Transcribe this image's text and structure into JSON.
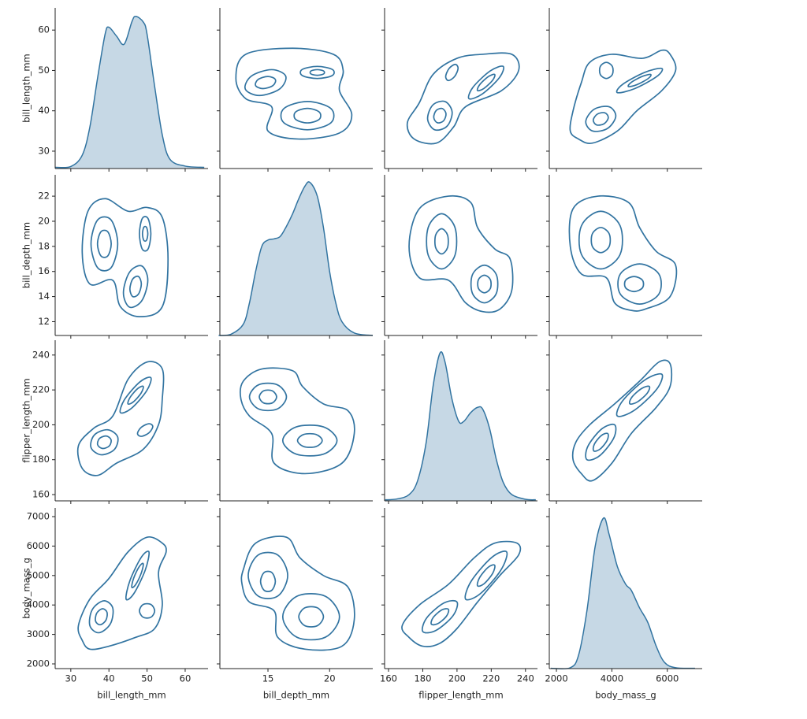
{
  "chart_data": {
    "type": "pairplot",
    "color": "#3274a1",
    "variables": [
      {
        "name": "bill_length_mm",
        "xlim": [
          25.9,
          66
        ],
        "ylim": [
          25.7,
          65.5
        ],
        "xticks": [
          30,
          40,
          50,
          60
        ],
        "yticks": [
          30,
          40,
          50,
          60
        ],
        "kde": {
          "x": [
            26,
            30,
            33,
            35,
            37,
            39,
            40,
            42,
            44,
            46,
            47,
            49,
            50,
            52,
            54,
            56,
            60,
            65
          ],
          "values": [
            26,
            26.2,
            29,
            36,
            48,
            59,
            60.7,
            58.5,
            56.5,
            62,
            63.4,
            62,
            59,
            46,
            34,
            28,
            26.3,
            26
          ]
        }
      },
      {
        "name": "bill_depth_mm",
        "xlim": [
          11.1,
          23.5
        ],
        "ylim": [
          10.9,
          23.7
        ],
        "xticks": [
          15,
          20
        ],
        "yticks": [
          12,
          14,
          16,
          18,
          20,
          22
        ],
        "kde": {
          "x": [
            11,
            12,
            13,
            13.5,
            14,
            14.5,
            15,
            15.5,
            16,
            16.5,
            17,
            17.5,
            18,
            18.4,
            19,
            19.5,
            20,
            20.5,
            21,
            22,
            23.5
          ],
          "values": [
            10.9,
            11,
            11.8,
            13.5,
            16,
            18,
            18.5,
            18.6,
            18.8,
            19.6,
            20.6,
            21.8,
            22.8,
            23.1,
            22,
            19.5,
            16,
            13.5,
            12,
            11.1,
            10.9
          ]
        }
      },
      {
        "name": "flipper_length_mm",
        "xlim": [
          157.7,
          247
        ],
        "ylim": [
          156.4,
          248.5
        ],
        "xticks": [
          160,
          180,
          200,
          220,
          240
        ],
        "yticks": [
          160,
          180,
          200,
          220,
          240
        ],
        "kde": {
          "x": [
            158,
            165,
            172,
            177,
            182,
            186,
            190,
            193,
            197,
            201,
            204,
            208,
            212,
            215,
            219,
            223,
            227,
            232,
            240,
            246
          ],
          "values": [
            157,
            157.5,
            160,
            168,
            190,
            222,
            241,
            236,
            215,
            202,
            202,
            207,
            210,
            209,
            198,
            180,
            167,
            160,
            157.3,
            157
          ]
        }
      },
      {
        "name": "body_mass_g",
        "xlim": [
          1743,
          7258
        ],
        "ylim": [
          1840,
          7294
        ],
        "xticks": [
          2000,
          4000,
          6000
        ],
        "yticks": [
          2000,
          3000,
          4000,
          5000,
          6000,
          7000
        ],
        "kde": {
          "x": [
            1800,
            2500,
            2800,
            3100,
            3400,
            3700,
            3900,
            4200,
            4500,
            4700,
            5000,
            5300,
            5600,
            5900,
            6300,
            7000
          ],
          "values": [
            1850,
            1870,
            2300,
            3800,
            6000,
            6950,
            6400,
            5300,
            4700,
            4500,
            3900,
            3400,
            2600,
            2050,
            1870,
            1850
          ]
        }
      }
    ],
    "pairs": [
      {
        "contours": [
          {
            "x": [
              33,
              34.5,
              39,
              45,
              50,
              54,
              55.5,
              54,
              48,
              43,
              41,
              35
            ],
            "y": [
              17.5,
              20.8,
              21.8,
              20.8,
              21.1,
              20.3,
              17,
              13.2,
              12.4,
              13.2,
              15.3,
              15
            ]
          },
          {
            "x": [
              42.3,
              40.55,
              37.05,
              35.3,
              37.05,
              40.55
            ],
            "y": [
              18.2,
              20.11,
              20.11,
              18.2,
              16.29,
              16.29
            ]
          },
          {
            "x": [
              40.6,
              39.7,
              37.9,
              37,
              37.9,
              39.7
            ],
            "y": [
              18.2,
              19.16,
              19.16,
              18.2,
              17.24,
              17.24
            ]
          },
          {
            "x": [
              50.2,
              48.6,
              45.4,
              43.8,
              45.4,
              48.6
            ],
            "y": [
              15.3,
              16.44,
              15.94,
              14.3,
              13.16,
              13.66
            ]
          },
          {
            "x": [
              48.5,
              47.75,
              46.25,
              45.5,
              46.25,
              47.75
            ],
            "y": [
              15,
              15.6,
              15.4,
              14.6,
              14,
              14.2
            ]
          },
          {
            "x": [
              51,
              50.25,
              48.75,
              48,
              48.75,
              50.25
            ],
            "y": [
              19,
              20.22,
              20.22,
              19,
              17.78,
              17.78
            ]
          },
          {
            "x": [
              50.2,
              49.85,
              49.15,
              48.8,
              49.15,
              49.85
            ],
            "y": [
              19,
              19.52,
              19.52,
              19,
              18.48,
              18.48
            ]
          }
        ]
      },
      {
        "contours": [
          {
            "x": [
              33,
              32,
              36,
              41,
              45,
              50,
              54,
              54,
              53,
              49,
              42,
              37
            ],
            "y": [
              175,
              188,
              198,
              205,
              226,
              236,
              232,
              215,
              200,
              186,
              178,
              171
            ]
          },
          {
            "x": [
              42.3,
              39.68,
              36.18,
              35.3,
              37.92,
              41.42
            ],
            "y": [
              193,
              197.16,
              194.16,
              187,
              182.84,
              185.84
            ]
          },
          {
            "x": [
              40.55,
              39.24,
              37.49,
              37.05,
              38.36,
              40.11
            ],
            "y": [
              191.5,
              193.58,
              192.08,
              188.5,
              186.42,
              187.92
            ]
          },
          {
            "x": [
              51,
              48.13,
              44.13,
              43,
              45.87,
              49.87
            ],
            "y": [
              227,
              224.61,
              214.61,
              207,
              209.39,
              219.39
            ]
          },
          {
            "x": [
              49,
              47.57,
              45.57,
              45,
              46.44,
              48.44
            ],
            "y": [
              222,
              220.81,
              215.81,
              212,
              213.2,
              218.2
            ]
          },
          {
            "x": [
              51.5,
              50.5,
              48.5,
              47.5,
              48.5,
              50.5
            ],
            "y": [
              199,
              200.61,
              198.61,
              195,
              193.39,
              195.39
            ]
          }
        ]
      },
      {
        "contours": [
          {
            "x": [
              33,
              32,
              35,
              40,
              45,
              50,
              54,
              55,
              53,
              54,
              52,
              47,
              40,
              35
            ],
            "y": [
              2800,
              3300,
              4200,
              4900,
              5800,
              6300,
              6100,
              5800,
              5100,
              4000,
              3200,
              2900,
              2600,
              2500
            ]
          },
          {
            "x": [
              41,
              38.63,
              35.63,
              35,
              37.37,
              40.37
            ],
            "y": [
              3900,
              4141.5,
              3841.5,
              3300,
              3058.5,
              3358.5
            ]
          },
          {
            "x": [
              39.5,
              38.3,
              36.8,
              36.5,
              37.7,
              39.2
            ],
            "y": [
              3750,
              3871,
              3721,
              3450,
              3329,
              3479
            ]
          },
          {
            "x": [
              50.5,
              48.48,
              45.48,
              44.5,
              46.52,
              49.52
            ],
            "y": [
              5800,
              5617.5,
              4817.5,
              4200,
              4382.5,
              5182.5
            ]
          },
          {
            "x": [
              49,
              47.99,
              46.49,
              46,
              47.01,
              48.51
            ],
            "y": [
              5400,
              5308.8,
              4908.8,
              4600,
              4691.2,
              5091.2
            ]
          },
          {
            "x": [
              52,
              51,
              49,
              48,
              49,
              51
            ],
            "y": [
              3800,
              4017.5,
              4017.5,
              3800,
              3582.5,
              3582.5
            ]
          }
        ]
      },
      {
        "contours": [
          {
            "x": [
              13,
              14.5,
              17,
              17.8,
              19.5,
              21.5,
              22,
              21,
              18,
              15.5,
              15.3,
              13.5,
              12.8
            ],
            "y": [
              225,
              232,
              231,
              222,
              212,
              208,
              195,
              178,
              172,
              178,
              195,
              205,
              215
            ]
          },
          {
            "x": [
              16.5,
              15.75,
              14.25,
              13.5,
              14.25,
              15.75
            ],
            "y": [
              216,
              222.96,
              222.96,
              216,
              209.04,
              209.04
            ]
          },
          {
            "x": [
              15.7,
              15.35,
              14.65,
              14.3,
              14.65,
              15.35
            ],
            "y": [
              216,
              219.48,
              219.48,
              216,
              212.52,
              212.52
            ]
          },
          {
            "x": [
              20.6,
              19.5,
              17.3,
              16.2,
              17.3,
              19.5
            ],
            "y": [
              191,
              198.83,
              198.83,
              191,
              183.17,
              183.17
            ]
          },
          {
            "x": [
              19.4,
              18.9,
              17.9,
              17.4,
              17.9,
              18.9
            ],
            "y": [
              191,
              194.48,
              194.48,
              191,
              187.52,
              187.52
            ]
          }
        ]
      },
      {
        "contours": [
          {
            "x": [
              13,
              14,
              16.5,
              17.6,
              19.5,
              21.5,
              22,
              21,
              18,
              15.8,
              15.5,
              13.5,
              12.9
            ],
            "y": [
              5200,
              6100,
              6300,
              5600,
              5000,
              4600,
              3500,
              2600,
              2500,
              2900,
              3800,
              4100,
              4700
            ]
          },
          {
            "x": [
              16.6,
              15.8,
              14.2,
              13.4,
              14.2,
              15.8
            ],
            "y": [
              5000,
              5696,
              5696,
              5000,
              4304,
              4304
            ]
          },
          {
            "x": [
              15.6,
              15.3,
              14.7,
              14.4,
              14.7,
              15.3
            ],
            "y": [
              4800,
              5104.5,
              5104.5,
              4800,
              4495.5,
              4495.5
            ]
          },
          {
            "x": [
              20.8,
              19.65,
              17.35,
              16.2,
              17.35,
              19.65
            ],
            "y": [
              3600,
              4296,
              4296,
              3600,
              2904,
              2904
            ]
          },
          {
            "x": [
              19.5,
              19,
              18,
              17.5,
              18,
              19
            ],
            "y": [
              3600,
              3904.5,
              3904.5,
              3600,
              3295.5,
              3295.5
            ]
          }
        ]
      },
      {
        "contours": [
          {
            "x": [
              172,
              168,
              178,
              195,
              210,
              222,
              235,
              236,
              225,
              212,
              200,
              190,
              180
            ],
            "y": [
              2900,
              3300,
              4000,
              4700,
              5600,
              6100,
              6100,
              5700,
              5000,
              4100,
              3200,
              2700,
              2600
            ]
          },
          {
            "x": [
              200,
              192.39,
              182.39,
              180,
              187.61,
              197.61
            ],
            "y": [
              4100,
              4067.5,
              3567.5,
              3100,
              3132.5,
              3632.5
            ]
          },
          {
            "x": [
              195,
              191.2,
              186.2,
              185,
              188.8,
              193.8
            ],
            "y": [
              3850,
              3833.8,
              3583.8,
              3350,
              3366.2,
              3616.2
            ]
          },
          {
            "x": [
              229,
              220.39,
              208.39,
              205,
              213.61,
              225.61
            ],
            "y": [
              5800,
              5617.5,
              4817.5,
              4200,
              4382.5,
              5182.5
            ]
          },
          {
            "x": [
              222,
              218.2,
              213.2,
              212,
              215.8,
              220.8
            ],
            "y": [
              5350,
              5279.4,
              4929.4,
              4650,
              4720.6,
              5070.6
            ]
          }
        ]
      }
    ]
  }
}
